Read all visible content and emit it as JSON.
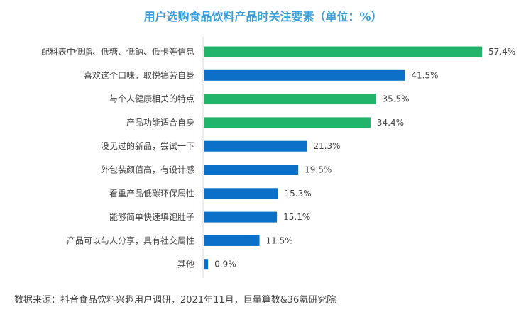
{
  "chart_data": {
    "type": "bar",
    "orientation": "horizontal",
    "title": "用户选购食品饮料产品时关注要素（单位：%）",
    "categories": [
      "配料表中低脂、低糖、低钠、低卡等信息",
      "喜欢这个口味，取悦犒劳自身",
      "与个人健康相关的特点",
      "产品功能适合自身",
      "没见过的新品，尝试一下",
      "外包装颜值高，有设计感",
      "看重产品低碳环保属性",
      "能够简单快速填饱肚子",
      "产品可以与人分享，具有社交属性",
      "其他"
    ],
    "values": [
      57.4,
      41.5,
      35.5,
      34.4,
      21.3,
      19.5,
      15.3,
      15.1,
      11.5,
      0.9
    ],
    "value_labels": [
      "57.4%",
      "41.5%",
      "35.5%",
      "34.4%",
      "21.3%",
      "19.5%",
      "15.3%",
      "15.1%",
      "11.5%",
      "0.9%"
    ],
    "bar_colors": [
      "#22b46a",
      "#0c6fc8",
      "#22b46a",
      "#22b46a",
      "#0c6fc8",
      "#0c6fc8",
      "#0c6fc8",
      "#0c6fc8",
      "#0c6fc8",
      "#0c6fc8"
    ],
    "xlim": [
      0,
      60
    ],
    "grid": false,
    "legend": "none"
  },
  "source": "数据来源：抖音食品饮料兴趣用户调研，2021年11月，巨量算数&36氪研究院"
}
